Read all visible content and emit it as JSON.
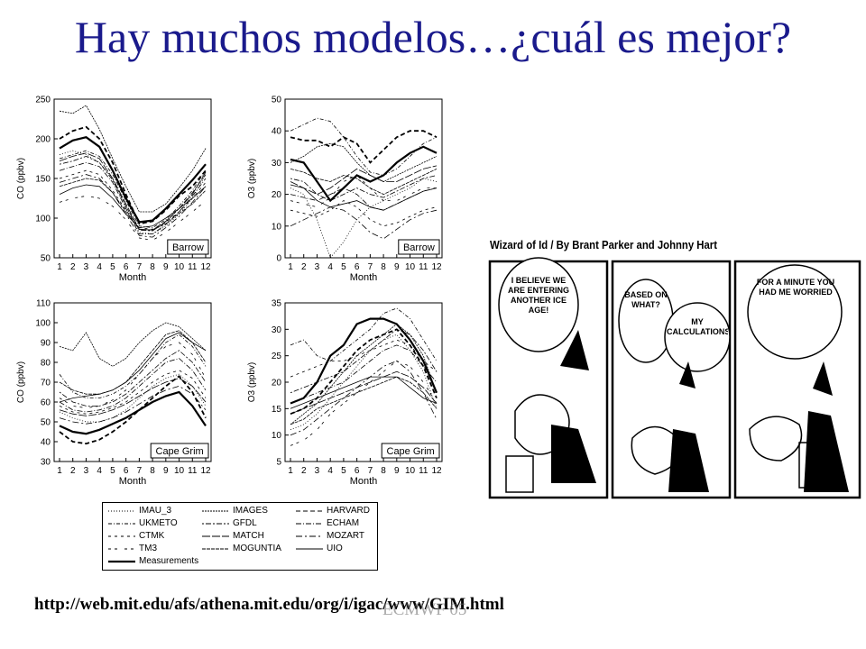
{
  "title": "Hay muchos modelos…¿cuál es mejor?",
  "url": "http://web.mit.edu/afs/athena.mit.edu/org/i/igac/www/GIM.html",
  "url_overlay": "ECMWF 05",
  "cartoon": {
    "header": "Wizard of Id / By Brant Parker and Johnny Hart",
    "panel1": "I BELIEVE WE ARE ENTERING ANOTHER ICE AGE!",
    "panel2a": "BASED ON WHAT?",
    "panel2b": "MY CALCULATIONS",
    "panel3": "FOR A MINUTE YOU HAD ME WORRIED"
  },
  "legend": [
    {
      "name": "IMAU_3",
      "dash": "1,2"
    },
    {
      "name": "IMAGES",
      "dash": "2,1"
    },
    {
      "name": "HARVARD",
      "dash": "5,3"
    },
    {
      "name": "UKMETO",
      "dash": "4,2,1,2"
    },
    {
      "name": "GFDL",
      "dash": "2,2,6,2"
    },
    {
      "name": "ECHAM",
      "dash": "6,2,1,2"
    },
    {
      "name": "CTMK",
      "dash": "3,4"
    },
    {
      "name": "MATCH",
      "dash": "9,2"
    },
    {
      "name": "MOZART",
      "dash": "7,3,2,3"
    },
    {
      "name": "TM3",
      "dash": "3,4,3,8"
    },
    {
      "name": "MOGUNTIA",
      "dash": "4,1"
    },
    {
      "name": "UIO",
      "dash": ""
    },
    {
      "name": "Measurements",
      "dash": "",
      "bold": true
    }
  ],
  "chart_data": [
    {
      "type": "line",
      "id": "co-barrow",
      "station": "Barrow",
      "xlabel": "Month",
      "ylabel": "CO (ppbv)",
      "x": [
        1,
        2,
        3,
        4,
        5,
        6,
        7,
        8,
        9,
        10,
        11,
        12
      ],
      "xticks": [
        "1",
        "2",
        "3",
        "4",
        "5",
        "6",
        "7",
        "8",
        "9",
        "10",
        "11",
        "12"
      ],
      "ylim": [
        50,
        250
      ],
      "yticks": [
        50,
        100,
        150,
        200,
        250
      ],
      "series": [
        {
          "name": "Measurements",
          "values": [
            188,
            198,
            202,
            190,
            160,
            125,
            95,
            97,
            112,
            130,
            148,
            168
          ]
        },
        {
          "name": "HARVARD",
          "values": [
            200,
            210,
            215,
            200,
            170,
            130,
            93,
            96,
            110,
            128,
            140,
            160
          ]
        },
        {
          "name": "IMAU_3",
          "values": [
            180,
            185,
            180,
            170,
            150,
            115,
            82,
            80,
            90,
            105,
            125,
            155
          ]
        },
        {
          "name": "IMAGES",
          "values": [
            235,
            232,
            242,
            212,
            175,
            140,
            108,
            108,
            118,
            138,
            160,
            188
          ]
        },
        {
          "name": "UKMETO",
          "values": [
            175,
            180,
            185,
            178,
            155,
            122,
            90,
            88,
            98,
            115,
            135,
            160
          ]
        },
        {
          "name": "GFDL",
          "values": [
            168,
            172,
            178,
            170,
            148,
            115,
            85,
            84,
            95,
            112,
            132,
            155
          ]
        },
        {
          "name": "ECHAM",
          "values": [
            160,
            165,
            170,
            165,
            145,
            112,
            80,
            80,
            92,
            108,
            128,
            150
          ]
        },
        {
          "name": "CTMK",
          "values": [
            150,
            155,
            160,
            155,
            135,
            110,
            88,
            86,
            95,
            108,
            125,
            145
          ]
        },
        {
          "name": "MATCH",
          "values": [
            172,
            178,
            182,
            175,
            150,
            118,
            86,
            85,
            96,
            112,
            130,
            158
          ]
        },
        {
          "name": "MOZART",
          "values": [
            145,
            150,
            155,
            150,
            132,
            105,
            78,
            76,
            88,
            102,
            120,
            140
          ]
        },
        {
          "name": "TM3",
          "values": [
            120,
            125,
            128,
            125,
            115,
            98,
            75,
            72,
            82,
            95,
            108,
            122
          ]
        },
        {
          "name": "MOGUNTIA",
          "values": [
            140,
            145,
            150,
            148,
            132,
            108,
            86,
            85,
            93,
            106,
            118,
            135
          ]
        },
        {
          "name": "UIO",
          "values": [
            130,
            138,
            142,
            140,
            125,
            105,
            88,
            90,
            100,
            112,
            125,
            140
          ]
        }
      ]
    },
    {
      "type": "line",
      "id": "o3-barrow",
      "station": "Barrow",
      "xlabel": "Month",
      "ylabel": "O3 (ppbv)",
      "x": [
        1,
        2,
        3,
        4,
        5,
        6,
        7,
        8,
        9,
        10,
        11,
        12
      ],
      "xticks": [
        "1",
        "2",
        "3",
        "4",
        "5",
        "6",
        "7",
        "8",
        "9",
        "10",
        "11",
        "12"
      ],
      "ylim": [
        0,
        50
      ],
      "yticks": [
        0,
        10,
        20,
        30,
        40,
        50
      ],
      "series": [
        {
          "name": "Measurements",
          "values": [
            31,
            30,
            24,
            18,
            22,
            26,
            24,
            26,
            30,
            33,
            35,
            33
          ]
        },
        {
          "name": "HARVARD",
          "values": [
            38,
            37,
            37,
            35,
            38,
            36,
            30,
            34,
            38,
            40,
            40,
            38
          ]
        },
        {
          "name": "IMAU_3",
          "values": [
            22,
            20,
            12,
            0,
            5,
            12,
            16,
            18,
            20,
            22,
            25,
            24
          ]
        },
        {
          "name": "IMAGES",
          "values": [
            30,
            32,
            35,
            36,
            35,
            30,
            26,
            24,
            26,
            28,
            30,
            32
          ]
        },
        {
          "name": "UKMETO",
          "values": [
            40,
            42,
            44,
            43,
            38,
            32,
            27,
            26,
            28,
            32,
            36,
            38
          ]
        },
        {
          "name": "GFDL",
          "values": [
            25,
            24,
            20,
            18,
            20,
            22,
            20,
            19,
            21,
            23,
            25,
            26
          ]
        },
        {
          "name": "ECHAM",
          "values": [
            20,
            19,
            18,
            20,
            22,
            20,
            16,
            15,
            17,
            19,
            21,
            22
          ]
        },
        {
          "name": "CTMK",
          "values": [
            15,
            14,
            13,
            15,
            18,
            16,
            12,
            10,
            11,
            13,
            15,
            16
          ]
        },
        {
          "name": "MATCH",
          "values": [
            24,
            22,
            20,
            22,
            25,
            28,
            26,
            24,
            24,
            26,
            28,
            29
          ]
        },
        {
          "name": "MOZART",
          "values": [
            10,
            12,
            14,
            16,
            15,
            12,
            8,
            6,
            9,
            12,
            14,
            15
          ]
        },
        {
          "name": "TM3",
          "values": [
            18,
            17,
            16,
            19,
            24,
            26,
            22,
            18,
            18,
            20,
            22,
            22
          ]
        },
        {
          "name": "MOGUNTIA",
          "values": [
            28,
            27,
            25,
            24,
            26,
            25,
            22,
            20,
            22,
            24,
            26,
            28
          ]
        },
        {
          "name": "UIO",
          "values": [
            23,
            22,
            18,
            16,
            17,
            18,
            16,
            15,
            17,
            19,
            21,
            22
          ]
        }
      ]
    },
    {
      "type": "line",
      "id": "co-capegrim",
      "station": "Cape Grim",
      "xlabel": "Month",
      "ylabel": "CO (ppbv)",
      "x": [
        1,
        2,
        3,
        4,
        5,
        6,
        7,
        8,
        9,
        10,
        11,
        12
      ],
      "xticks": [
        "1",
        "2",
        "3",
        "4",
        "5",
        "6",
        "7",
        "8",
        "9",
        "10",
        "11",
        "12"
      ],
      "ylim": [
        30,
        110
      ],
      "yticks": [
        30,
        40,
        50,
        60,
        70,
        80,
        90,
        100,
        110
      ],
      "series": [
        {
          "name": "Measurements",
          "values": [
            48,
            45,
            44,
            46,
            49,
            52,
            56,
            60,
            63,
            65,
            58,
            48
          ]
        },
        {
          "name": "HARVARD",
          "values": [
            45,
            40,
            39,
            41,
            45,
            50,
            56,
            62,
            68,
            73,
            65,
            52
          ]
        },
        {
          "name": "IMAU_3",
          "values": [
            55,
            52,
            50,
            50,
            52,
            56,
            62,
            68,
            72,
            74,
            68,
            58
          ]
        },
        {
          "name": "IMAGES",
          "values": [
            88,
            86,
            95,
            82,
            78,
            82,
            90,
            96,
            100,
            98,
            92,
            86
          ]
        },
        {
          "name": "UKMETO",
          "values": [
            74,
            65,
            62,
            62,
            64,
            68,
            74,
            82,
            90,
            94,
            88,
            78
          ]
        },
        {
          "name": "GFDL",
          "values": [
            65,
            60,
            58,
            58,
            60,
            64,
            70,
            76,
            82,
            86,
            80,
            70
          ]
        },
        {
          "name": "ECHAM",
          "values": [
            60,
            56,
            55,
            56,
            58,
            62,
            68,
            74,
            80,
            82,
            76,
            66
          ]
        },
        {
          "name": "CTMK",
          "values": [
            58,
            55,
            54,
            55,
            57,
            60,
            65,
            70,
            74,
            76,
            72,
            62
          ]
        },
        {
          "name": "MATCH",
          "values": [
            56,
            54,
            53,
            54,
            56,
            59,
            63,
            67,
            70,
            72,
            68,
            60
          ]
        },
        {
          "name": "MOZART",
          "values": [
            52,
            50,
            49,
            50,
            52,
            55,
            59,
            63,
            66,
            68,
            64,
            56
          ]
        },
        {
          "name": "TM3",
          "values": [
            62,
            58,
            57,
            58,
            61,
            66,
            74,
            82,
            88,
            90,
            84,
            72
          ]
        },
        {
          "name": "MOGUNTIA",
          "values": [
            70,
            66,
            64,
            64,
            66,
            70,
            78,
            86,
            94,
            96,
            90,
            80
          ]
        },
        {
          "name": "UIO",
          "values": [
            60,
            62,
            63,
            64,
            66,
            70,
            76,
            84,
            92,
            95,
            90,
            86
          ]
        }
      ]
    },
    {
      "type": "line",
      "id": "o3-capegrim",
      "station": "Cape Grim",
      "xlabel": "Month",
      "ylabel": "O3 (ppbv)",
      "x": [
        1,
        2,
        3,
        4,
        5,
        6,
        7,
        8,
        9,
        10,
        11,
        12
      ],
      "xticks": [
        "1",
        "2",
        "3",
        "4",
        "5",
        "6",
        "7",
        "8",
        "9",
        "10",
        "11",
        "12"
      ],
      "ylim": [
        5,
        35
      ],
      "yticks": [
        5,
        10,
        15,
        20,
        25,
        30,
        35
      ],
      "series": [
        {
          "name": "Measurements",
          "values": [
            16,
            17,
            20,
            25,
            27,
            31,
            32,
            32,
            31,
            28,
            24,
            18
          ]
        },
        {
          "name": "HARVARD",
          "values": [
            14,
            15,
            17,
            20,
            23,
            26,
            28,
            29,
            30,
            27,
            23,
            17
          ]
        },
        {
          "name": "IMAU_3",
          "values": [
            11,
            12,
            14,
            17,
            20,
            23,
            26,
            28,
            29,
            26,
            22,
            15
          ]
        },
        {
          "name": "IMAGES",
          "values": [
            12,
            14,
            16,
            19,
            22,
            25,
            27,
            29,
            31,
            29,
            25,
            18
          ]
        },
        {
          "name": "UKMETO",
          "values": [
            27,
            28,
            25,
            24,
            26,
            28,
            30,
            33,
            34,
            32,
            28,
            24
          ]
        },
        {
          "name": "GFDL",
          "values": [
            18,
            19,
            20,
            21,
            22,
            24,
            26,
            28,
            30,
            29,
            26,
            22
          ]
        },
        {
          "name": "ECHAM",
          "values": [
            16,
            17,
            18,
            19,
            20,
            22,
            24,
            26,
            27,
            26,
            23,
            20
          ]
        },
        {
          "name": "CTMK",
          "values": [
            21,
            22,
            23,
            24,
            24,
            25,
            26,
            27,
            28,
            27,
            24,
            22
          ]
        },
        {
          "name": "MATCH",
          "values": [
            14,
            15,
            16,
            17,
            18,
            19,
            20,
            21,
            22,
            21,
            19,
            16
          ]
        },
        {
          "name": "MOZART",
          "values": [
            10,
            11,
            13,
            15,
            17,
            19,
            21,
            23,
            24,
            22,
            18,
            13
          ]
        },
        {
          "name": "TM3",
          "values": [
            8,
            9,
            11,
            14,
            16,
            18,
            20,
            22,
            24,
            23,
            20,
            16
          ]
        },
        {
          "name": "MOGUNTIA",
          "values": [
            12,
            13,
            15,
            16,
            17,
            18,
            19,
            20,
            21,
            20,
            18,
            15
          ]
        },
        {
          "name": "UIO",
          "values": [
            15,
            16,
            17,
            18,
            19,
            20,
            21,
            21,
            21,
            19,
            17,
            16
          ]
        }
      ]
    }
  ]
}
